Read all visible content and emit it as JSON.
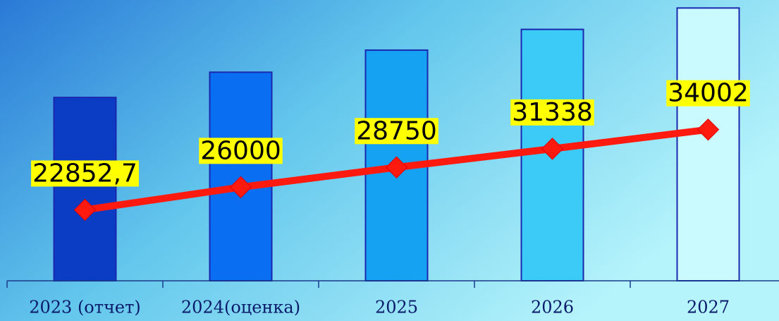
{
  "chart_data": {
    "type": "bar-line",
    "categories": [
      "2023 (отчет)",
      "2024(оценка)",
      "2025",
      "2026",
      "2027"
    ],
    "series": [
      {
        "type": "bar",
        "colors": [
          "#0a3cc4",
          "#0a6ef2",
          "#16a2f2",
          "#3ccaf6",
          "#cafafd"
        ],
        "border": "#1a28b0",
        "values": [
          22852.7,
          26000,
          28750,
          31338,
          34002
        ]
      },
      {
        "type": "line",
        "axis": "y2",
        "color": "#ff1a10",
        "values": [
          22852.7,
          26000,
          28750,
          31338,
          34002
        ],
        "value_labels": [
          "22852,7",
          "26000",
          "28750",
          "31338",
          "34002"
        ]
      }
    ],
    "ylim": [
      0,
      35000
    ],
    "y2lim": [
      13000,
      52000
    ]
  }
}
